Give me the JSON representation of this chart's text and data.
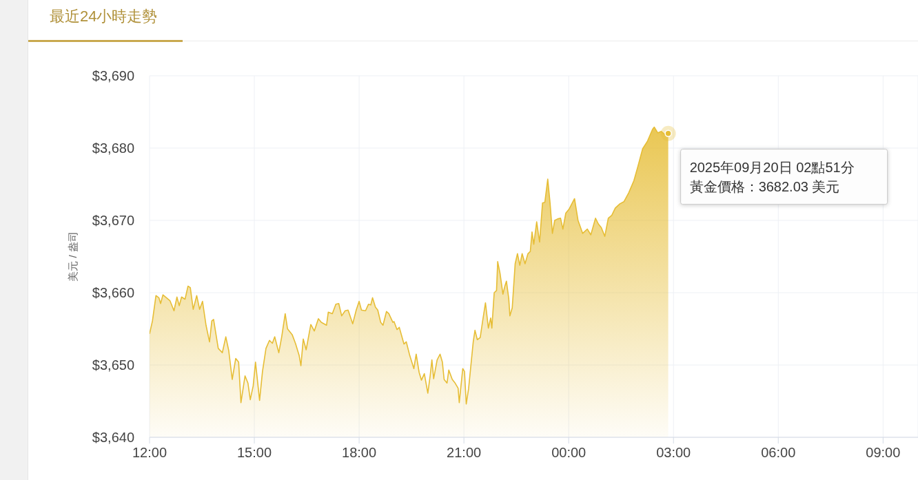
{
  "chart_data": {
    "type": "area",
    "title": "最近24小時走勢",
    "ylabel": "美元 / 盎司",
    "x": [
      "2025-09-19T12:00",
      "2025-09-19T12:05",
      "2025-09-19T12:11",
      "2025-09-19T12:16",
      "2025-09-19T12:19",
      "2025-09-19T12:23",
      "2025-09-19T12:29",
      "2025-09-19T12:35",
      "2025-09-19T12:42",
      "2025-09-19T12:47",
      "2025-09-19T12:51",
      "2025-09-19T12:55",
      "2025-09-19T13:01",
      "2025-09-19T13:06",
      "2025-09-19T13:10",
      "2025-09-19T13:15",
      "2025-09-19T13:21",
      "2025-09-19T13:26",
      "2025-09-19T13:31",
      "2025-09-19T13:37",
      "2025-09-19T13:43",
      "2025-09-19T13:47",
      "2025-09-19T13:50",
      "2025-09-19T13:58",
      "2025-09-19T14:05",
      "2025-09-19T14:11",
      "2025-09-19T14:16",
      "2025-09-19T14:22",
      "2025-09-19T14:28",
      "2025-09-19T14:33",
      "2025-09-19T14:37",
      "2025-09-19T14:44",
      "2025-09-19T14:49",
      "2025-09-19T14:53",
      "2025-09-19T14:58",
      "2025-09-19T15:02",
      "2025-09-19T15:09",
      "2025-09-19T15:14",
      "2025-09-19T15:20",
      "2025-09-19T15:26",
      "2025-09-19T15:31",
      "2025-09-19T15:35",
      "2025-09-19T15:42",
      "2025-09-19T15:47",
      "2025-09-19T15:53",
      "2025-09-19T15:57",
      "2025-09-19T16:05",
      "2025-09-19T16:11",
      "2025-09-19T16:17",
      "2025-09-19T16:20",
      "2025-09-19T16:24",
      "2025-09-19T16:29",
      "2025-09-19T16:37",
      "2025-09-19T16:43",
      "2025-09-19T16:50",
      "2025-09-19T16:55",
      "2025-09-19T17:04",
      "2025-09-19T17:07",
      "2025-09-19T17:14",
      "2025-09-19T17:20",
      "2025-09-19T17:25",
      "2025-09-19T17:30",
      "2025-09-19T17:36",
      "2025-09-19T17:41",
      "2025-09-19T17:49",
      "2025-09-19T17:55",
      "2025-09-19T18:00",
      "2025-09-19T18:04",
      "2025-09-19T18:11",
      "2025-09-19T18:16",
      "2025-09-19T18:20",
      "2025-09-19T18:23",
      "2025-09-19T18:28",
      "2025-09-19T18:32",
      "2025-09-19T18:37",
      "2025-09-19T18:41",
      "2025-09-19T18:47",
      "2025-09-19T18:51",
      "2025-09-19T18:58",
      "2025-09-19T19:00",
      "2025-09-19T19:05",
      "2025-09-19T19:09",
      "2025-09-19T19:17",
      "2025-09-19T19:21",
      "2025-09-19T19:27",
      "2025-09-19T19:34",
      "2025-09-19T19:38",
      "2025-09-19T19:43",
      "2025-09-19T19:47",
      "2025-09-19T19:52",
      "2025-09-19T19:58",
      "2025-09-19T20:02",
      "2025-09-19T20:05",
      "2025-09-19T20:08",
      "2025-09-19T20:14",
      "2025-09-19T20:19",
      "2025-09-19T20:23",
      "2025-09-19T20:26",
      "2025-09-19T20:31",
      "2025-09-19T20:34",
      "2025-09-19T20:40",
      "2025-09-19T20:44",
      "2025-09-19T20:50",
      "2025-09-19T20:52",
      "2025-09-19T20:58",
      "2025-09-19T21:01",
      "2025-09-19T21:04",
      "2025-09-19T21:08",
      "2025-09-19T21:16",
      "2025-09-19T21:19",
      "2025-09-19T21:23",
      "2025-09-19T21:28",
      "2025-09-19T21:32",
      "2025-09-19T21:37",
      "2025-09-19T21:42",
      "2025-09-19T21:46",
      "2025-09-19T21:48",
      "2025-09-19T21:52",
      "2025-09-19T21:56",
      "2025-09-19T21:58",
      "2025-09-19T22:02",
      "2025-09-19T22:07",
      "2025-09-19T22:10",
      "2025-09-19T22:13",
      "2025-09-19T22:17",
      "2025-09-19T22:19",
      "2025-09-19T22:23",
      "2025-09-19T22:28",
      "2025-09-19T22:32",
      "2025-09-19T22:36",
      "2025-09-19T22:40",
      "2025-09-19T22:45",
      "2025-09-19T22:50",
      "2025-09-19T22:54",
      "2025-09-19T22:57",
      "2025-09-19T23:00",
      "2025-09-19T23:05",
      "2025-09-19T23:10",
      "2025-09-19T23:15",
      "2025-09-19T23:19",
      "2025-09-19T23:24",
      "2025-09-19T23:28",
      "2025-09-19T23:32",
      "2025-09-19T23:36",
      "2025-09-19T23:41",
      "2025-09-19T23:46",
      "2025-09-19T23:50",
      "2025-09-19T23:55",
      "2025-09-20T00:01",
      "2025-09-20T00:06",
      "2025-09-20T00:10",
      "2025-09-20T00:16",
      "2025-09-20T00:24",
      "2025-09-20T00:32",
      "2025-09-20T00:38",
      "2025-09-20T00:46",
      "2025-09-20T00:51",
      "2025-09-20T00:56",
      "2025-09-20T01:02",
      "2025-09-20T01:08",
      "2025-09-20T01:14",
      "2025-09-20T01:20",
      "2025-09-20T01:28",
      "2025-09-20T01:35",
      "2025-09-20T01:43",
      "2025-09-20T01:52",
      "2025-09-20T01:59",
      "2025-09-20T02:07",
      "2025-09-20T02:15",
      "2025-09-20T02:24",
      "2025-09-20T02:27",
      "2025-09-20T02:33",
      "2025-09-20T02:39",
      "2025-09-20T02:45",
      "2025-09-20T02:51"
    ],
    "series": [
      {
        "color": "#e6bd35",
        "values": [
          3654.3,
          3656.1,
          3659.6,
          3659.3,
          3658.5,
          3659.7,
          3659.3,
          3658.9,
          3657.5,
          3659.4,
          3658.2,
          3659.4,
          3659.1,
          3660.9,
          3660.7,
          3657.7,
          3659.6,
          3657.7,
          3658.8,
          3655.5,
          3653.2,
          3656.1,
          3656.3,
          3652.3,
          3651.7,
          3653.9,
          3652.0,
          3648.0,
          3650.9,
          3650.4,
          3644.8,
          3648.5,
          3647.5,
          3645.2,
          3647.1,
          3650.4,
          3645.1,
          3649.1,
          3652.3,
          3653.4,
          3653.0,
          3653.9,
          3651.7,
          3653.9,
          3657.1,
          3655.0,
          3654.2,
          3652.9,
          3651.3,
          3649.9,
          3653.6,
          3652.1,
          3655.6,
          3654.7,
          3656.4,
          3655.9,
          3655.5,
          3657.3,
          3657.1,
          3658.4,
          3658.5,
          3656.8,
          3657.5,
          3657.6,
          3655.7,
          3657.6,
          3658.8,
          3657.6,
          3657.5,
          3658.4,
          3658.3,
          3659.3,
          3658.0,
          3657.6,
          3655.9,
          3655.5,
          3657.4,
          3657.1,
          3655.9,
          3656.0,
          3654.9,
          3655.2,
          3652.9,
          3653.2,
          3651.3,
          3649.5,
          3651.5,
          3649.0,
          3647.9,
          3648.8,
          3646.1,
          3648.5,
          3650.7,
          3648.1,
          3650.7,
          3651.5,
          3650.4,
          3648.0,
          3647.5,
          3649.3,
          3648.0,
          3647.6,
          3646.8,
          3644.8,
          3649.5,
          3649.1,
          3644.6,
          3646.7,
          3653.2,
          3654.8,
          3653.5,
          3653.8,
          3656.0,
          3658.6,
          3655.1,
          3656.5,
          3655.1,
          3660.0,
          3660.3,
          3664.3,
          3662.7,
          3659.8,
          3660.8,
          3661.6,
          3659.2,
          3656.8,
          3657.9,
          3664.0,
          3665.4,
          3663.8,
          3665.4,
          3664.0,
          3665.4,
          3665.7,
          3668.4,
          3666.7,
          3669.8,
          3667.0,
          3672.4,
          3672.5,
          3675.7,
          3672.4,
          3668.2,
          3670.0,
          3670.2,
          3670.3,
          3668.8,
          3671.0,
          3671.6,
          3672.4,
          3673.0,
          3670.0,
          3668.2,
          3668.8,
          3668.0,
          3670.3,
          3669.5,
          3669.0,
          3667.8,
          3670.3,
          3670.7,
          3671.7,
          3672.3,
          3672.6,
          3673.8,
          3675.5,
          3677.5,
          3679.9,
          3680.9,
          3682.6,
          3682.9,
          3682.1,
          3682.3,
          3681.9,
          3682.03
        ]
      }
    ],
    "xlim": [
      "2025-09-19T12:00",
      "2025-09-20T10:00"
    ],
    "xticks": [
      {
        "value": "2025-09-19T12:00",
        "label": "12:00"
      },
      {
        "value": "2025-09-19T15:00",
        "label": "15:00"
      },
      {
        "value": "2025-09-19T18:00",
        "label": "18:00"
      },
      {
        "value": "2025-09-19T21:00",
        "label": "21:00"
      },
      {
        "value": "2025-09-20T00:00",
        "label": "00:00"
      },
      {
        "value": "2025-09-20T03:00",
        "label": "03:00"
      },
      {
        "value": "2025-09-20T06:00",
        "label": "06:00"
      },
      {
        "value": "2025-09-20T09:00",
        "label": "09:00"
      }
    ],
    "ylim": [
      3640,
      3690
    ],
    "yticks": [
      {
        "value": 3640,
        "label": "$3,640"
      },
      {
        "value": 3650,
        "label": "$3,650"
      },
      {
        "value": 3660,
        "label": "$3,660"
      },
      {
        "value": 3670,
        "label": "$3,670"
      },
      {
        "value": 3680,
        "label": "$3,680"
      },
      {
        "value": 3690,
        "label": "$3,690"
      }
    ],
    "grid": true,
    "annotations": [
      {
        "text": "2025年09月20日 02點51分",
        "x": "2025-09-20T02:51",
        "y": 3682.03
      },
      "黃金價格：3682.03 美元"
    ]
  }
}
